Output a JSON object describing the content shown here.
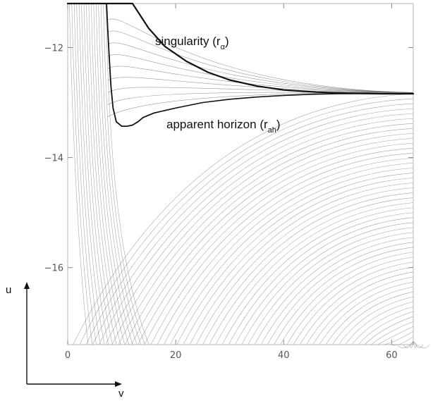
{
  "chart_data": {
    "type": "line",
    "xlim": [
      0,
      64
    ],
    "ylim": [
      -17.4,
      -11.2
    ],
    "y_increases": "downward",
    "x_ticks": [
      0,
      20,
      40,
      60
    ],
    "y_ticks": [
      -12,
      -14,
      -16
    ],
    "x_tick_labels": [
      "0",
      "20",
      "40",
      "60"
    ],
    "y_tick_labels": [
      "-12",
      "-14",
      "-16"
    ],
    "grid": false,
    "axis_arrows": {
      "u_label": "u",
      "v_label": "v"
    },
    "annotations": [
      {
        "id": "singularity",
        "text": "singularity (r",
        "sub": "α",
        "close": ")"
      },
      {
        "id": "apparent_horizon",
        "text": "apparent horizon (r",
        "sub": "ah",
        "close": ")"
      }
    ],
    "series": [
      {
        "x": [
          0,
          0.5,
          1,
          1.5,
          2,
          3,
          4,
          5,
          6,
          7,
          8,
          10,
          12,
          15,
          18,
          22,
          26,
          30,
          35,
          40,
          46,
          52,
          58,
          64
        ],
        "y": [
          -11.2,
          -11.2,
          -11.2,
          -11.2,
          -11.2,
          -11.2,
          -11.2,
          -11.2,
          -11.2,
          -11.2,
          -11.2,
          -11.2,
          -11.2,
          -11.65,
          -11.98,
          -12.25,
          -12.45,
          -12.59,
          -12.7,
          -12.77,
          -12.81,
          -12.83,
          -12.84,
          -12.84
        ]
      },
      {
        "x": [
          7.2,
          7.4,
          7.7,
          8,
          8.4,
          9,
          10,
          11,
          12,
          13,
          14,
          16
        ],
        "y": [
          -11.2,
          -11.65,
          -12.2,
          -12.7,
          -13.1,
          -13.35,
          -13.43,
          -13.43,
          -13.41,
          -13.35,
          -13.27,
          -13.19
        ]
      },
      {
        "x": [
          16,
          20,
          25,
          30,
          35,
          40,
          45,
          50,
          55,
          64
        ],
        "y": [
          -13.19,
          -13.1,
          -13,
          -12.94,
          -12.9,
          -12.87,
          -12.85,
          -12.84,
          -12.84,
          -12.84
        ]
      }
    ],
    "colors": {
      "lines": "#555555",
      "curves": "#111111",
      "frame": "#b5b5b5"
    }
  }
}
